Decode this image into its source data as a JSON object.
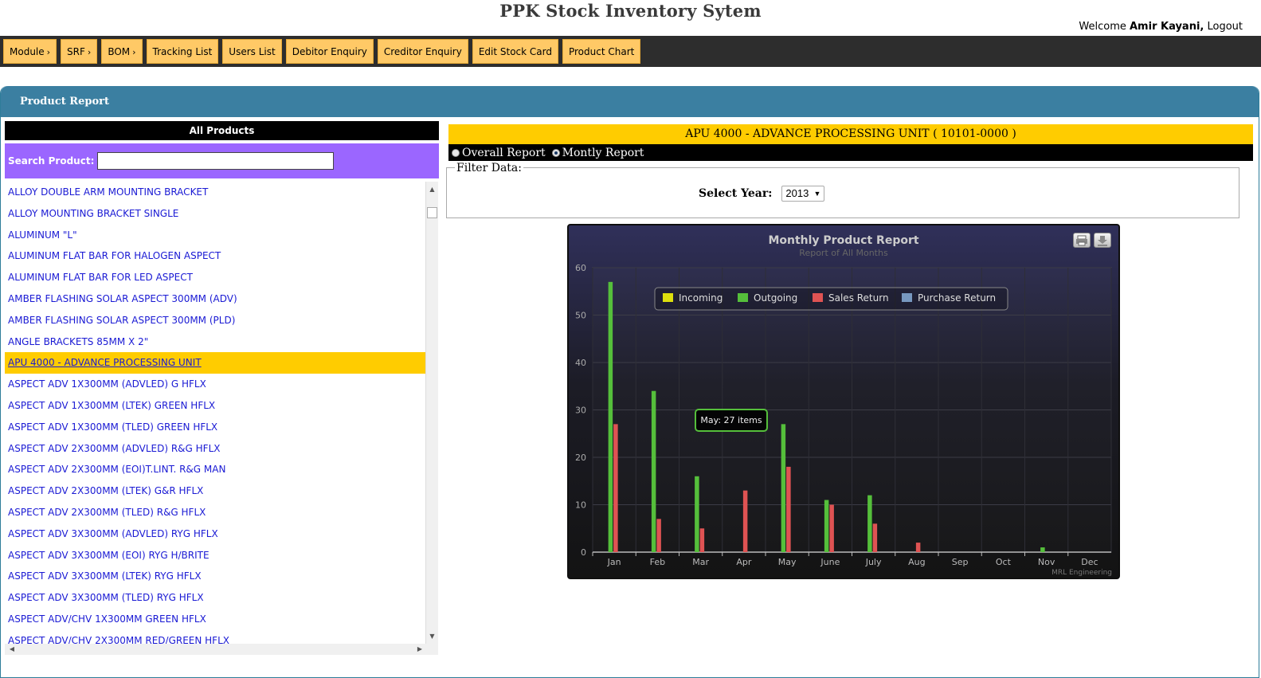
{
  "header": {
    "title": "PPK Stock Inventory Sytem",
    "welcome_prefix": "Welcome",
    "user_name": "Amir Kayani,",
    "logout": "Logout"
  },
  "nav": {
    "items": [
      {
        "label": "Module",
        "caret": "›"
      },
      {
        "label": "SRF",
        "caret": "›"
      },
      {
        "label": "BOM",
        "caret": "›"
      },
      {
        "label": "Tracking List",
        "caret": ""
      },
      {
        "label": "Users List",
        "caret": ""
      },
      {
        "label": "Debitor Enquiry",
        "caret": ""
      },
      {
        "label": "Creditor Enquiry",
        "caret": ""
      },
      {
        "label": "Edit Stock Card",
        "caret": ""
      },
      {
        "label": "Product Chart",
        "caret": ""
      }
    ]
  },
  "panel": {
    "title": "Product Report"
  },
  "left": {
    "heading": "All Products",
    "search_label": "Search Product:",
    "search_value": "",
    "products": [
      "ALLOY DOUBLE ARM MOUNTING BRACKET",
      "ALLOY MOUNTING BRACKET SINGLE",
      "ALUMINUM \"L\"",
      "ALUMINUM FLAT BAR FOR HALOGEN ASPECT",
      "ALUMINUM FLAT BAR FOR LED ASPECT",
      "AMBER FLASHING SOLAR ASPECT 300MM (ADV)",
      "AMBER FLASHING SOLAR ASPECT 300MM (PLD)",
      "ANGLE BRACKETS 85MM X 2\"",
      "APU 4000 - ADVANCE PROCESSING UNIT",
      "ASPECT ADV 1X300MM (ADVLED) G HFLX",
      "ASPECT ADV 1X300MM (LTEK) GREEN HFLX",
      "ASPECT ADV 1X300MM (TLED) GREEN HFLX",
      "ASPECT ADV 2X300MM (ADVLED) R&G HFLX",
      "ASPECT ADV 2X300MM (EOI)T.LINT. R&G MAN",
      "ASPECT ADV 2X300MM (LTEK) G&R HFLX",
      "ASPECT ADV 2X300MM (TLED) R&G HFLX",
      "ASPECT ADV 3X300MM (ADVLED) RYG HFLX",
      "ASPECT ADV 3X300MM (EOI) RYG H/BRITE",
      "ASPECT ADV 3X300MM (LTEK) RYG HFLX",
      "ASPECT ADV 3X300MM (TLED) RYG HFLX",
      "ASPECT ADV/CHV 1X300MM GREEN HFLX",
      "ASPECT ADV/CHV 2X300MM RED/GREEN HFLX"
    ],
    "selected_index": 8
  },
  "right": {
    "product_title": "APU 4000 - ADVANCE PROCESSING UNIT ( 10101-0000 )",
    "report_options": [
      "Overall Report",
      "Montly Report"
    ],
    "selected_report": 1,
    "filter_legend": "Filter Data:",
    "year_label": "Select Year:",
    "year_value": "2013"
  },
  "chart_data": {
    "type": "bar",
    "title": "Monthly Product Report",
    "subtitle": "Report of All Months",
    "credits": "MRL Engineering",
    "categories": [
      "Jan",
      "Feb",
      "Mar",
      "Apr",
      "May",
      "June",
      "July",
      "Aug",
      "Sep",
      "Oct",
      "Nov",
      "Dec"
    ],
    "ylim": [
      0,
      60
    ],
    "yticks": [
      0,
      10,
      20,
      30,
      40,
      50,
      60
    ],
    "grid": true,
    "legend_position": "top",
    "series": [
      {
        "name": "Incoming",
        "color": "#dddf0d",
        "values": [
          0,
          0,
          0,
          0,
          0,
          0,
          0,
          0,
          0,
          0,
          0,
          0
        ]
      },
      {
        "name": "Outgoing",
        "color": "#55bf3b",
        "values": [
          57,
          34,
          16,
          0,
          27,
          11,
          12,
          0,
          0,
          0,
          1,
          0
        ]
      },
      {
        "name": "Sales Return",
        "color": "#df5353",
        "values": [
          27,
          7,
          5,
          13,
          18,
          10,
          6,
          2,
          0,
          0,
          0,
          0
        ]
      },
      {
        "name": "Purchase Return",
        "color": "#7798bf",
        "values": [
          0,
          0,
          0,
          0,
          0,
          0,
          0,
          0,
          0,
          0,
          0,
          0
        ]
      }
    ],
    "tooltip": {
      "text": "May: 27 items"
    }
  },
  "colors": {
    "nav_button": "#ffc966",
    "panel_header": "#3b7fa1",
    "selected_row": "#ffcc00",
    "search_bar": "#9b66ff",
    "link": "#1a1ad4"
  }
}
